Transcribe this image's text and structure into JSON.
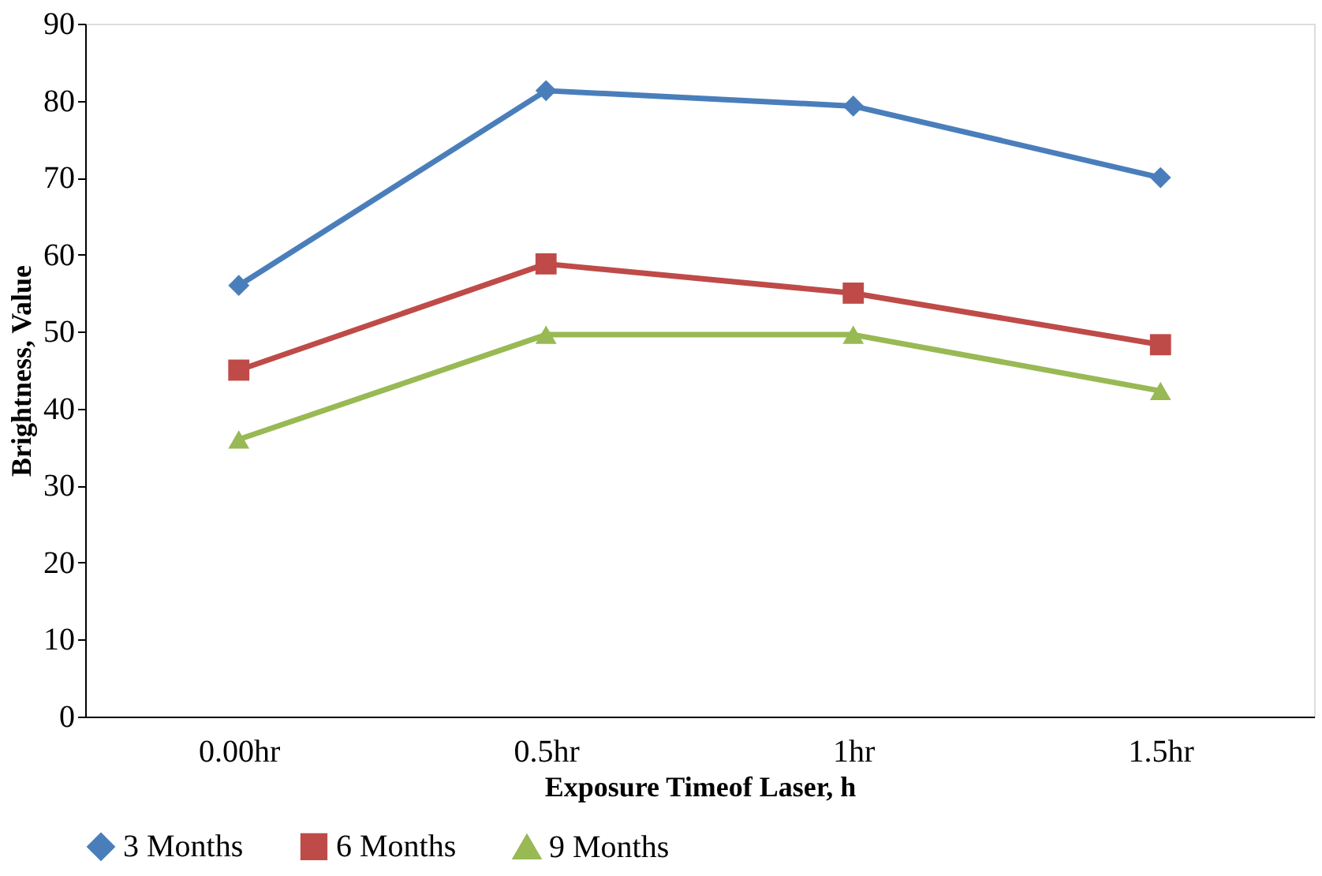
{
  "chart_data": {
    "type": "line",
    "xlabel": "Exposure Timeof Laser, h",
    "ylabel": "Brightness,  Value",
    "categories": [
      "0.00hr",
      "0.5hr",
      "1hr",
      "1.5hr"
    ],
    "series": [
      {
        "name": "3 Months",
        "color": "#4a7ebb",
        "marker": "diamond",
        "values": [
          56,
          81.3,
          79.3,
          70
        ]
      },
      {
        "name": "6 Months",
        "color": "#be4b48",
        "marker": "square",
        "values": [
          45,
          58.8,
          55,
          48.3
        ]
      },
      {
        "name": "9 Months",
        "color": "#98b954",
        "marker": "triangle",
        "values": [
          36,
          49.6,
          49.6,
          42.3
        ]
      }
    ],
    "ylim": [
      0,
      90
    ],
    "yticks": [
      0,
      10,
      20,
      30,
      40,
      50,
      60,
      70,
      80,
      90
    ],
    "grid": false,
    "legend": "bottom",
    "line_style": "solid"
  }
}
